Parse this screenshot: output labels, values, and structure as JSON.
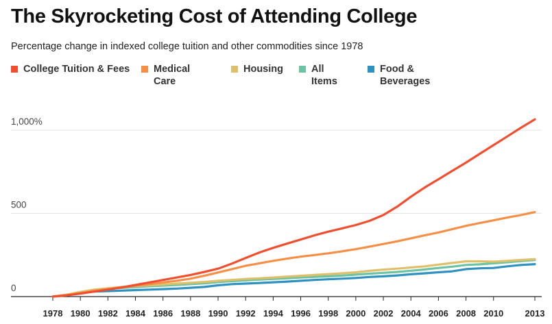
{
  "header": {
    "title": "The Skyrocketing Cost of Attending College",
    "subtitle": "Percentage change in indexed college tuition and other commodities since 1978"
  },
  "legend": [
    {
      "label": "College Tuition & Fees",
      "color": "#f04e2f"
    },
    {
      "label": "Medical Care",
      "color": "#f58f45"
    },
    {
      "label": "Housing",
      "color": "#dfc06a"
    },
    {
      "label": "All Items",
      "color": "#6cc3a4"
    },
    {
      "label": "Food & Beverages",
      "color": "#2f91c0"
    }
  ],
  "chart_data": {
    "type": "line",
    "title": "The Skyrocketing Cost of Attending College",
    "subtitle": "Percentage change in indexed college tuition and other commodities since 1978",
    "xlabel": "",
    "ylabel": "",
    "xlim": [
      1978,
      2013
    ],
    "ylim": [
      0,
      1100
    ],
    "y_ticks": [
      0,
      500,
      1000
    ],
    "y_tick_labels": [
      "0",
      "500",
      "1,000%"
    ],
    "x_ticks": [
      1978,
      1980,
      1982,
      1984,
      1986,
      1988,
      1990,
      1992,
      1994,
      1996,
      1998,
      2000,
      2002,
      2004,
      2006,
      2008,
      2010,
      2013
    ],
    "x_tick_labels": [
      "1978",
      "1980",
      "1982",
      "1984",
      "1986",
      "1988",
      "1990",
      "1992",
      "1994",
      "1996",
      "1998",
      "2000",
      "2002",
      "2004",
      "2006",
      "2008",
      "2010",
      "2013"
    ],
    "x": [
      1978,
      1979,
      1980,
      1981,
      1982,
      1983,
      1984,
      1985,
      1986,
      1987,
      1988,
      1989,
      1990,
      1991,
      1992,
      1993,
      1994,
      1995,
      1996,
      1997,
      1998,
      1999,
      2000,
      2001,
      2002,
      2003,
      2004,
      2005,
      2006,
      2007,
      2008,
      2009,
      2010,
      2011,
      2012,
      2013
    ],
    "series": [
      {
        "name": "College Tuition & Fees",
        "color": "#f04e2f",
        "values": [
          0,
          8,
          18,
          30,
          42,
          55,
          70,
          85,
          100,
          115,
          130,
          148,
          168,
          198,
          232,
          265,
          293,
          318,
          343,
          368,
          390,
          410,
          430,
          455,
          490,
          540,
          600,
          655,
          705,
          755,
          805,
          858,
          910,
          962,
          1015,
          1065
        ]
      },
      {
        "name": "Medical Care",
        "color": "#f58f45",
        "values": [
          0,
          8,
          22,
          35,
          45,
          55,
          65,
          75,
          85,
          95,
          108,
          125,
          145,
          165,
          185,
          200,
          215,
          228,
          240,
          250,
          260,
          272,
          285,
          300,
          316,
          332,
          350,
          368,
          385,
          405,
          425,
          442,
          458,
          475,
          490,
          508
        ]
      },
      {
        "name": "Housing",
        "color": "#dfc06a",
        "values": [
          0,
          12,
          28,
          42,
          50,
          58,
          63,
          68,
          73,
          78,
          83,
          88,
          95,
          100,
          106,
          110,
          115,
          120,
          125,
          130,
          135,
          140,
          146,
          155,
          162,
          168,
          175,
          182,
          192,
          202,
          212,
          212,
          210,
          215,
          220,
          225
        ]
      },
      {
        "name": "All Items",
        "color": "#6cc3a4",
        "values": [
          0,
          11,
          27,
          40,
          47,
          52,
          57,
          62,
          66,
          70,
          75,
          80,
          87,
          93,
          97,
          102,
          106,
          110,
          115,
          119,
          122,
          126,
          132,
          138,
          143,
          148,
          155,
          163,
          172,
          180,
          190,
          194,
          200,
          206,
          213,
          220
        ]
      },
      {
        "name": "Food & Beverages",
        "color": "#2f91c0",
        "values": [
          0,
          10,
          22,
          30,
          33,
          36,
          39,
          42,
          45,
          48,
          53,
          58,
          68,
          75,
          78,
          82,
          86,
          90,
          95,
          100,
          104,
          108,
          112,
          118,
          122,
          127,
          134,
          140,
          146,
          152,
          165,
          170,
          172,
          182,
          190,
          195
        ]
      }
    ]
  }
}
